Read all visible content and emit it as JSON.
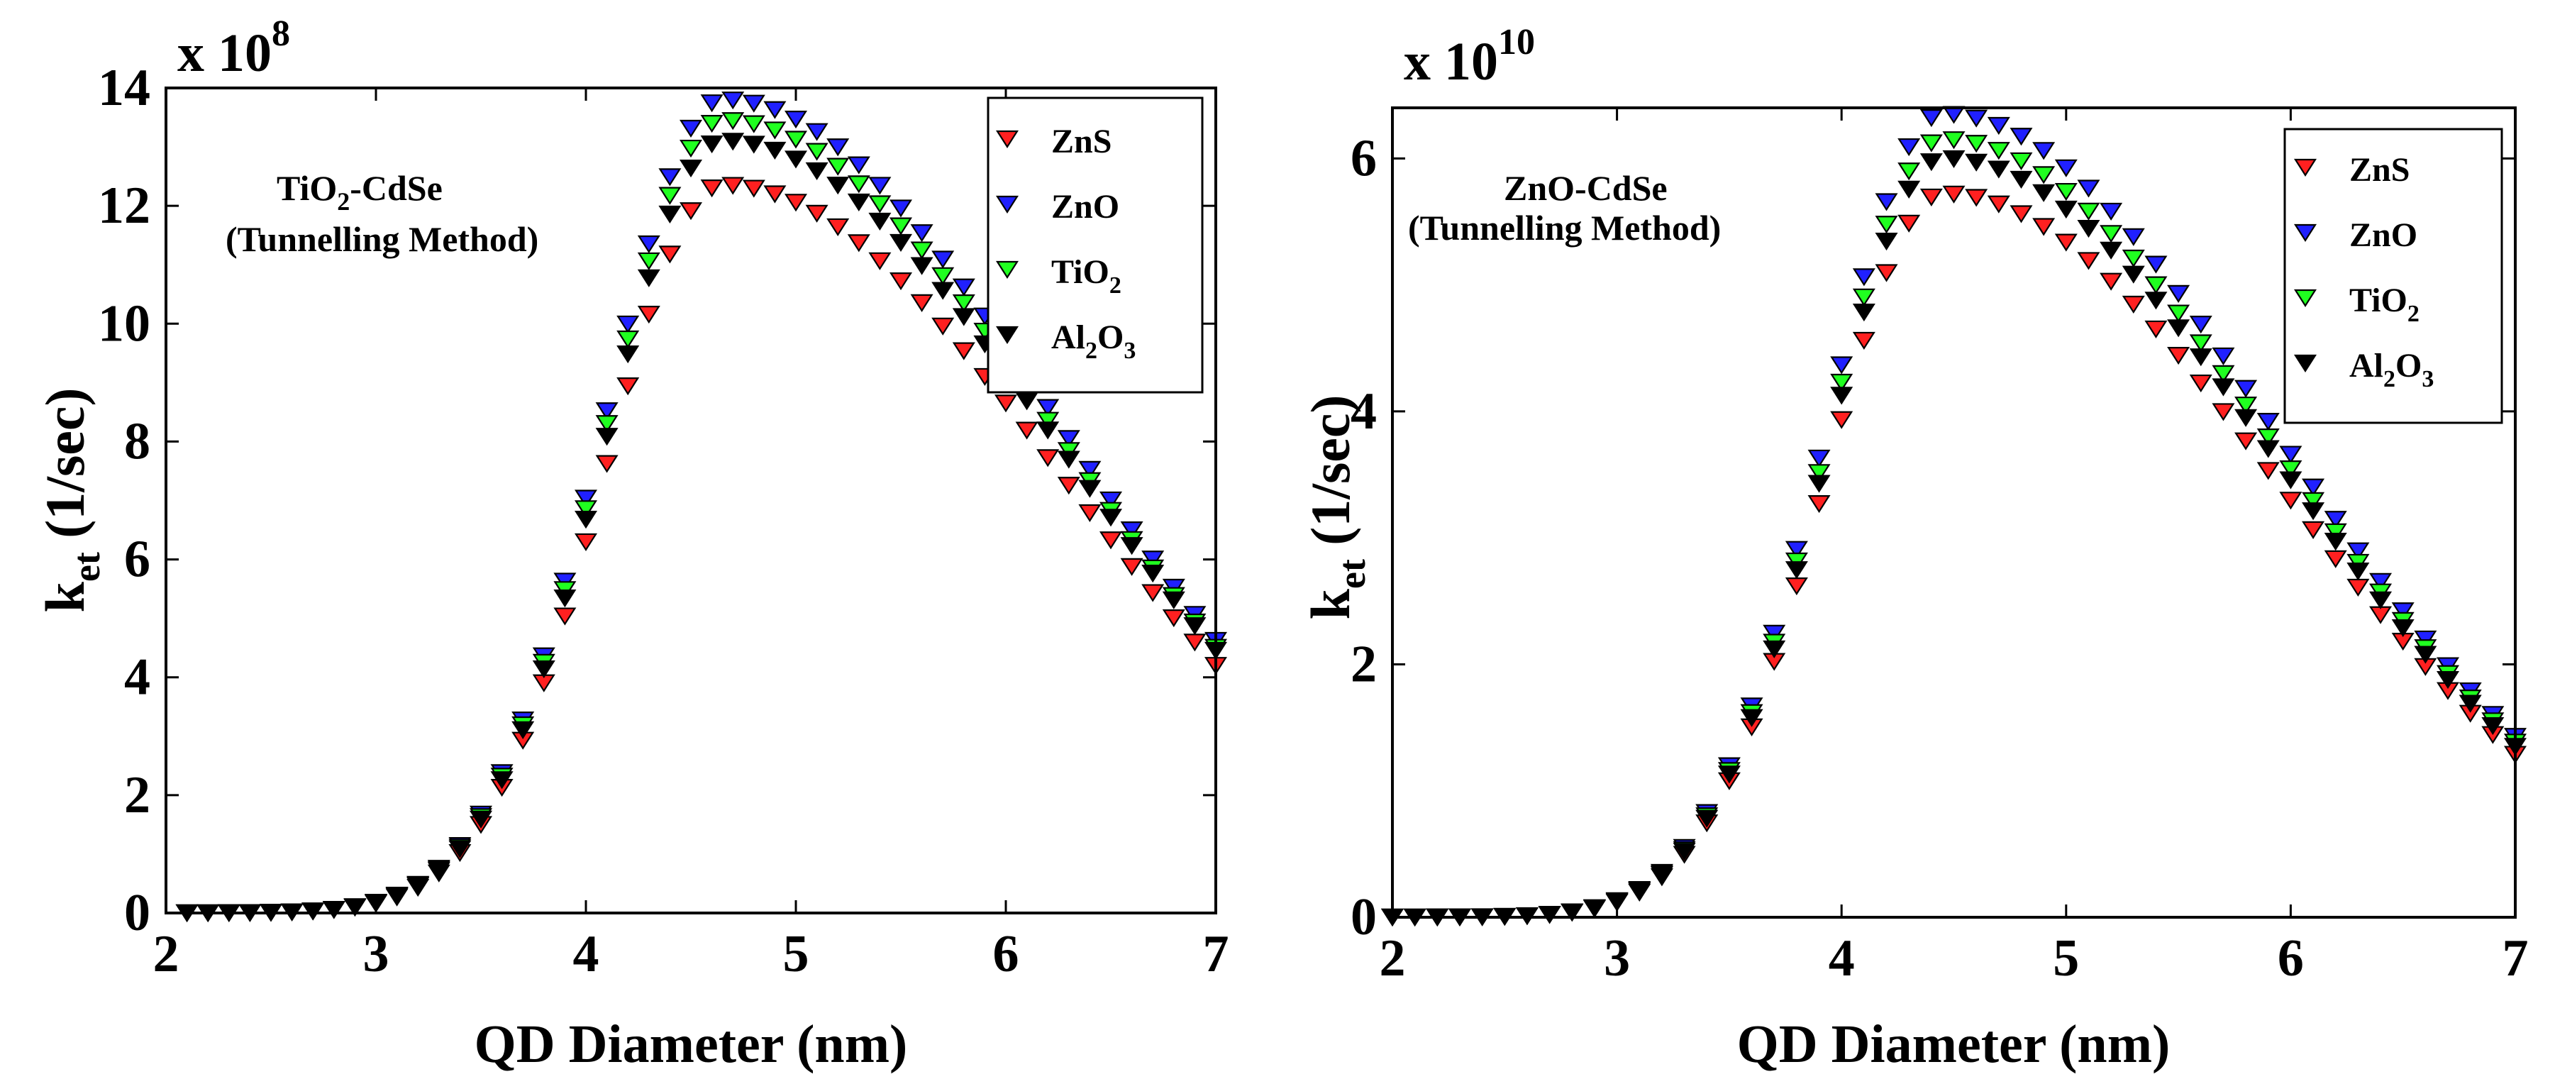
{
  "chart_data": [
    {
      "type": "scatter",
      "title": "",
      "annotation": {
        "main": "TiO",
        "sub": "2",
        "rest": "-CdSe",
        "line2": "(Tunnelling Method)"
      },
      "multiplier": {
        "base": "x 10",
        "exp": "8"
      },
      "xlabel": "QD Diameter (nm)",
      "ylabel": {
        "main": "k",
        "sub": "et",
        "rest": " (1/sec)"
      },
      "xlim": [
        2,
        7
      ],
      "ylim": [
        0,
        14
      ],
      "xticks": [
        "2",
        "3",
        "4",
        "5",
        "6",
        "7"
      ],
      "yticks": [
        "0",
        "2",
        "4",
        "6",
        "8",
        "10",
        "12",
        "14"
      ],
      "legend_position": "top-right",
      "marker": "triangle-down",
      "series": [
        {
          "name": "ZnS",
          "name_main": "ZnS",
          "name_sub": "",
          "name_rest": "",
          "color": "#ff2020",
          "peak": 12.35
        },
        {
          "name": "ZnO",
          "name_main": "ZnO",
          "name_sub": "",
          "name_rest": "",
          "color": "#2020ff",
          "peak": 13.8
        },
        {
          "name": "TiO2",
          "name_main": "TiO",
          "name_sub": "2",
          "name_rest": "",
          "color": "#20ff20",
          "peak": 13.45
        },
        {
          "name": "Al2O3",
          "name_main": "Al",
          "name_sub": "2",
          "name_rest": "O",
          "name_sub2": "3",
          "color": "#000000",
          "peak": 13.1
        }
      ],
      "shape": {
        "x_start": 2.1,
        "x_step": 0.1,
        "x_end": 7.0,
        "peak_x": 4.65,
        "sigma_left": 0.56,
        "sigma_right": 1.44,
        "end_ratio": [
          0.34,
          0.335,
          0.335,
          0.34
        ]
      }
    },
    {
      "type": "scatter",
      "title": "",
      "annotation": {
        "main": "ZnO-CdSe",
        "sub": "",
        "rest": "",
        "line2": "(Tunnelling Method)"
      },
      "multiplier": {
        "base": "x 10",
        "exp": "10"
      },
      "xlabel": "QD Diameter (nm)",
      "ylabel": {
        "main": "k",
        "sub": "et",
        "rest": " (1/sec)"
      },
      "xlim": [
        2,
        7
      ],
      "ylim": [
        0,
        6.4
      ],
      "xticks": [
        "2",
        "3",
        "4",
        "5",
        "6",
        "7"
      ],
      "yticks": [
        "0",
        "2",
        "4",
        "6"
      ],
      "legend_position": "top-right",
      "marker": "triangle-down",
      "series": [
        {
          "name": "ZnS",
          "name_main": "ZnS",
          "name_sub": "",
          "name_rest": "",
          "color": "#ff2020",
          "peak": 5.72
        },
        {
          "name": "ZnO",
          "name_main": "ZnO",
          "name_sub": "",
          "name_rest": "",
          "color": "#2020ff",
          "peak": 6.35
        },
        {
          "name": "TiO2",
          "name_main": "TiO",
          "name_sub": "2",
          "name_rest": "",
          "color": "#20ff20",
          "peak": 6.15
        },
        {
          "name": "Al2O3",
          "name_main": "Al",
          "name_sub": "2",
          "name_rest": "O",
          "name_sub2": "3",
          "color": "#000000",
          "peak": 6.0
        }
      ],
      "shape": {
        "x_start": 2.0,
        "x_step": 0.1,
        "x_end": 7.0,
        "peak_x": 4.45,
        "sigma_left": 0.52,
        "sigma_right": 1.48,
        "end_ratio": [
          0.225,
          0.225,
          0.225,
          0.225
        ]
      }
    }
  ]
}
